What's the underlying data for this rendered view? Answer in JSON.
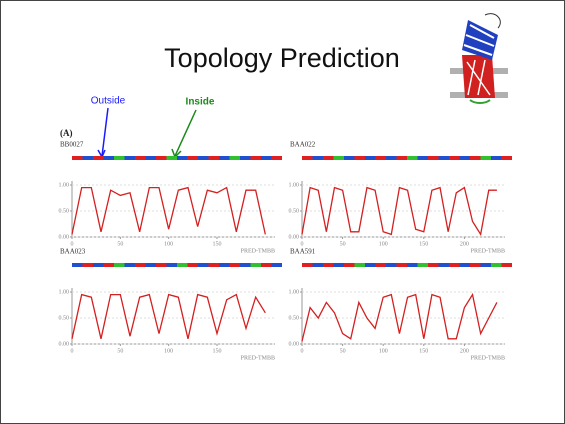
{
  "header": {
    "title": "Topology Prediction"
  },
  "annotations": {
    "outside": "Outside",
    "inside": "Inside",
    "figure_label": "(A)"
  },
  "panels": [
    {
      "label": "BB0027",
      "footer": "PRED-TMBB",
      "xlim": [
        0,
        210
      ],
      "ylim": [
        0,
        1
      ],
      "xticks": [
        0,
        50,
        100,
        150
      ],
      "yticks": [
        {
          "value": 0,
          "label": "0.00"
        },
        {
          "value": 0.5,
          "label": "0.50"
        },
        {
          "value": 1,
          "label": "1.00"
        }
      ],
      "topology_colors": [
        "#e02020",
        "#2050d0",
        "#e02020",
        "#2050d0",
        "#30c030",
        "#2050d0",
        "#e02020",
        "#2050d0",
        "#e02020",
        "#30c030",
        "#2050d0",
        "#e02020",
        "#2050d0",
        "#e02020",
        "#2050d0",
        "#30c030",
        "#2050d0",
        "#e02020",
        "#2050d0",
        "#e02020"
      ],
      "line_color": "#d42020",
      "x": [
        0,
        10,
        20,
        30,
        40,
        50,
        60,
        70,
        80,
        90,
        100,
        110,
        120,
        130,
        140,
        150,
        160,
        170,
        180,
        190,
        200
      ],
      "values": [
        0.05,
        0.95,
        0.95,
        0.1,
        0.9,
        0.8,
        0.85,
        0.1,
        0.95,
        0.95,
        0.15,
        0.9,
        0.95,
        0.2,
        0.9,
        0.85,
        0.95,
        0.1,
        0.9,
        0.9,
        0.05
      ]
    },
    {
      "label": "BAA022",
      "footer": "PRED-TMBB",
      "xlim": [
        0,
        250
      ],
      "ylim": [
        0,
        1
      ],
      "xticks": [
        0,
        50,
        100,
        150,
        200
      ],
      "yticks": [
        {
          "value": 0,
          "label": "0.00"
        },
        {
          "value": 0.5,
          "label": "0.50"
        },
        {
          "value": 1,
          "label": "1.00"
        }
      ],
      "topology_colors": [
        "#e02020",
        "#2050d0",
        "#e02020",
        "#30c030",
        "#2050d0",
        "#e02020",
        "#2050d0",
        "#e02020",
        "#2050d0",
        "#e02020",
        "#30c030",
        "#2050d0",
        "#e02020",
        "#2050d0",
        "#e02020",
        "#2050d0",
        "#e02020",
        "#30c030",
        "#2050d0",
        "#e02020"
      ],
      "line_color": "#d42020",
      "x": [
        0,
        10,
        20,
        30,
        40,
        50,
        60,
        70,
        80,
        90,
        100,
        110,
        120,
        130,
        140,
        150,
        160,
        170,
        180,
        190,
        200,
        210,
        220,
        230,
        240
      ],
      "values": [
        0.05,
        0.95,
        0.9,
        0.1,
        0.95,
        0.9,
        0.1,
        0.1,
        0.95,
        0.9,
        0.1,
        0.05,
        0.95,
        0.9,
        0.15,
        0.1,
        0.9,
        0.95,
        0.1,
        0.85,
        0.95,
        0.3,
        0.05,
        0.9,
        0.9
      ]
    },
    {
      "label": "BAA023",
      "footer": "PRED-TMBB",
      "xlim": [
        0,
        210
      ],
      "ylim": [
        0,
        1
      ],
      "xticks": [
        0,
        50,
        100,
        150
      ],
      "yticks": [
        {
          "value": 0,
          "label": "0.00"
        },
        {
          "value": 0.5,
          "label": "0.50"
        },
        {
          "value": 1,
          "label": "1.00"
        }
      ],
      "topology_colors": [
        "#2050d0",
        "#e02020",
        "#2050d0",
        "#e02020",
        "#30c030",
        "#2050d0",
        "#e02020",
        "#2050d0",
        "#e02020",
        "#2050d0",
        "#30c030",
        "#e02020",
        "#2050d0",
        "#e02020",
        "#2050d0",
        "#e02020",
        "#2050d0",
        "#30c030",
        "#e02020",
        "#2050d0"
      ],
      "line_color": "#d42020",
      "x": [
        0,
        10,
        20,
        30,
        40,
        50,
        60,
        70,
        80,
        90,
        100,
        110,
        120,
        130,
        140,
        150,
        160,
        170,
        180,
        190,
        200
      ],
      "values": [
        0.1,
        0.95,
        0.9,
        0.1,
        0.95,
        0.95,
        0.15,
        0.9,
        0.95,
        0.2,
        0.95,
        0.9,
        0.1,
        0.95,
        0.9,
        0.2,
        0.85,
        0.95,
        0.3,
        0.9,
        0.6
      ]
    },
    {
      "label": "BAA591",
      "footer": "PRED-TMBB",
      "xlim": [
        0,
        250
      ],
      "ylim": [
        0,
        1
      ],
      "xticks": [
        0,
        50,
        100,
        150,
        200
      ],
      "yticks": [
        {
          "value": 0,
          "label": "0.00"
        },
        {
          "value": 0.5,
          "label": "0.50"
        },
        {
          "value": 1,
          "label": "1.00"
        }
      ],
      "topology_colors": [
        "#e02020",
        "#2050d0",
        "#e02020",
        "#2050d0",
        "#e02020",
        "#30c030",
        "#2050d0",
        "#e02020",
        "#2050d0",
        "#e02020",
        "#2050d0",
        "#30c030",
        "#e02020",
        "#2050d0",
        "#e02020",
        "#2050d0",
        "#e02020",
        "#2050d0",
        "#30c030",
        "#e02020"
      ],
      "line_color": "#d42020",
      "x": [
        0,
        10,
        20,
        30,
        40,
        50,
        60,
        70,
        80,
        90,
        100,
        110,
        120,
        130,
        140,
        150,
        160,
        170,
        180,
        190,
        200,
        210,
        220,
        230,
        240
      ],
      "values": [
        0.05,
        0.7,
        0.5,
        0.8,
        0.6,
        0.2,
        0.1,
        0.8,
        0.5,
        0.3,
        0.9,
        0.95,
        0.2,
        0.9,
        0.95,
        0.1,
        0.95,
        0.9,
        0.1,
        0.1,
        0.7,
        0.95,
        0.2,
        0.5,
        0.8
      ]
    }
  ]
}
